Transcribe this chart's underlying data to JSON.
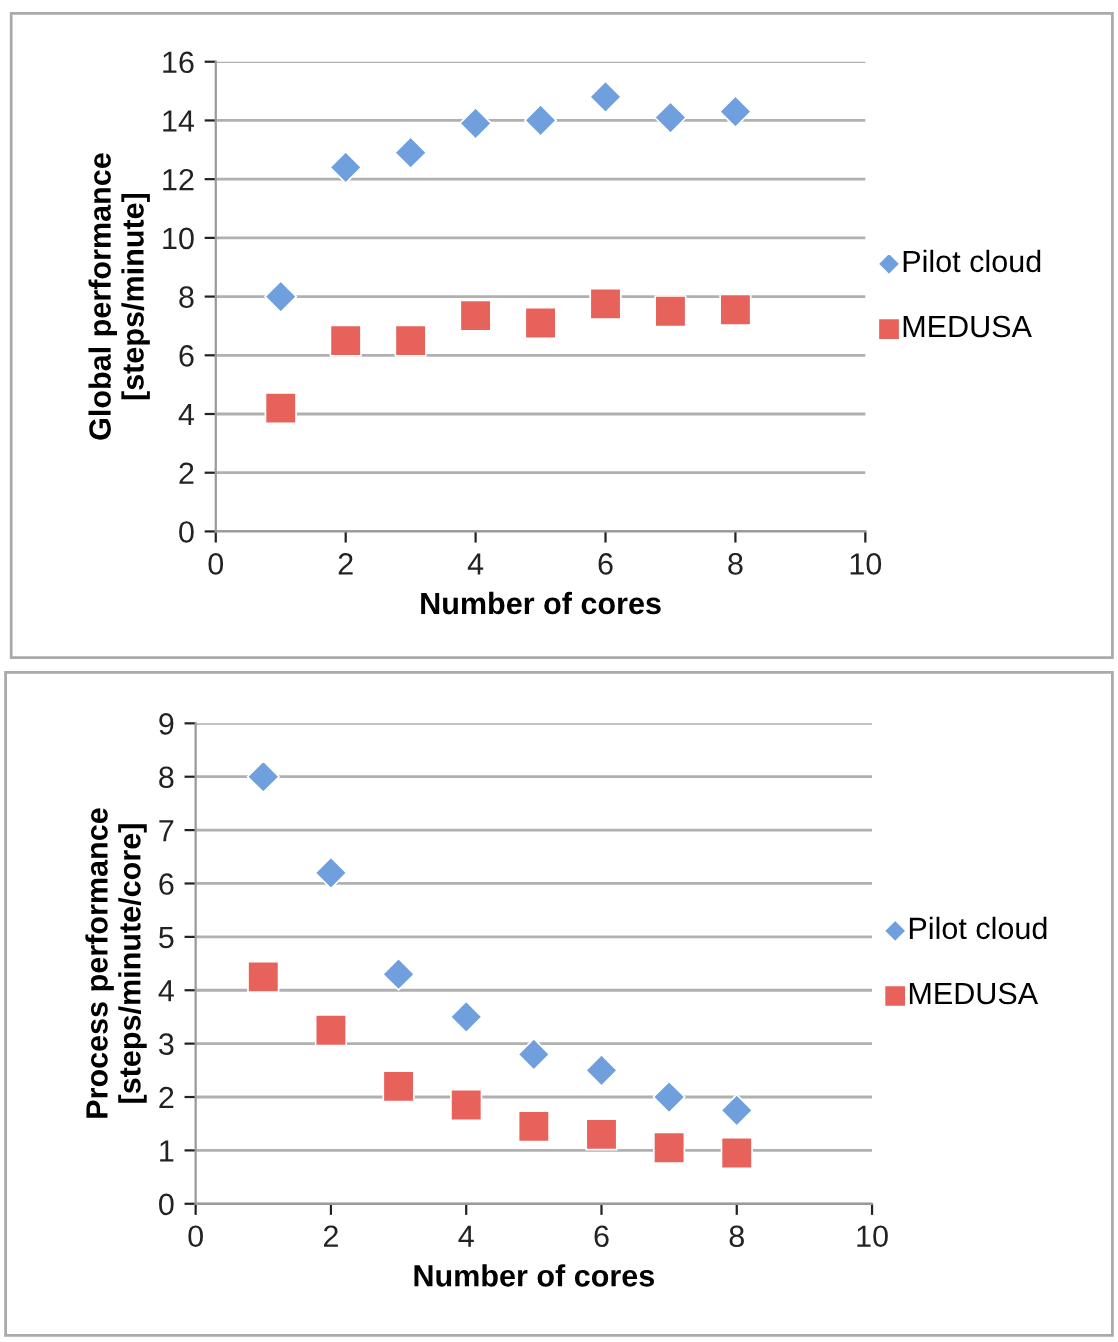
{
  "chart_data": [
    {
      "type": "scatter",
      "xlabel": "Number of cores",
      "ylabel": "Global performance\n[steps/minute]",
      "x": [
        1,
        2,
        3,
        4,
        5,
        6,
        7,
        8
      ],
      "xlim": [
        0,
        10
      ],
      "xticks": [
        0,
        2,
        4,
        6,
        8,
        10
      ],
      "ylim": [
        0,
        16
      ],
      "yticks": [
        0,
        2,
        4,
        6,
        8,
        10,
        12,
        14,
        16
      ],
      "grid": "y",
      "legend": "right",
      "series": [
        {
          "name": "Pilot cloud",
          "color": "#6f9fdc",
          "marker": "diamond",
          "values": [
            8.0,
            12.4,
            12.9,
            13.9,
            14.0,
            14.8,
            14.1,
            14.3
          ]
        },
        {
          "name": "MEDUSA",
          "color": "#e8625c",
          "marker": "square",
          "values": [
            4.2,
            6.5,
            6.5,
            7.35,
            7.1,
            7.75,
            7.5,
            7.55
          ]
        }
      ]
    },
    {
      "type": "scatter",
      "xlabel": "Number of cores",
      "ylabel": "Process performance\n[steps/minute/core]",
      "x": [
        1,
        2,
        3,
        4,
        5,
        6,
        7,
        8
      ],
      "xlim": [
        0,
        10
      ],
      "xticks": [
        0,
        2,
        4,
        6,
        8,
        10
      ],
      "ylim": [
        0,
        9
      ],
      "yticks": [
        0,
        1,
        2,
        3,
        4,
        5,
        6,
        7,
        8,
        9
      ],
      "grid": "y",
      "legend": "right",
      "series": [
        {
          "name": "Pilot cloud",
          "color": "#6f9fdc",
          "marker": "diamond",
          "values": [
            8.0,
            6.2,
            4.3,
            3.5,
            2.8,
            2.5,
            2.0,
            1.75
          ]
        },
        {
          "name": "MEDUSA",
          "color": "#e8625c",
          "marker": "square",
          "values": [
            4.25,
            3.25,
            2.2,
            1.85,
            1.45,
            1.3,
            1.05,
            0.95
          ]
        }
      ]
    }
  ]
}
